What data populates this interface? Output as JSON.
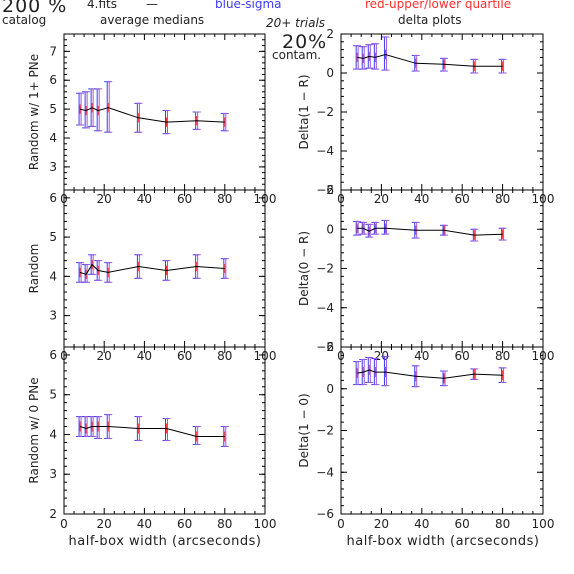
{
  "header": {
    "percent": "200 %",
    "catalog": "catalog",
    "fits": "4.fits",
    "dash": "—",
    "avg": "average medians",
    "blue": "blue-sigma",
    "red": "red-upper/lower quartile",
    "trials": "20+ trials",
    "delta": "delta plots",
    "contam_pct": "20%",
    "contam": "contam."
  },
  "colors": {
    "line": "#000000",
    "blue": "#3b3bff",
    "red": "#ff3030",
    "error": "#9b59d6"
  },
  "xlabel": "half-box width (arcseconds)",
  "chart_data": [
    {
      "type": "line",
      "ylabel": "Random w/ 1+ PNe",
      "xlim": [
        0,
        100
      ],
      "ylim": [
        2.2,
        7.6
      ],
      "xticks": [
        0,
        20,
        40,
        60,
        80,
        100
      ],
      "yticks": [
        3,
        4,
        5,
        6,
        7
      ],
      "x": [
        8,
        11,
        14,
        17,
        22,
        37,
        51,
        66,
        80
      ],
      "values": [
        5.0,
        4.95,
        5.05,
        4.95,
        5.05,
        4.7,
        4.55,
        4.6,
        4.55
      ],
      "err_lo": [
        4.45,
        4.35,
        4.4,
        4.25,
        4.2,
        4.2,
        4.15,
        4.3,
        4.25
      ],
      "err_hi": [
        5.55,
        5.6,
        5.7,
        5.7,
        5.95,
        5.2,
        4.95,
        4.9,
        4.85
      ]
    },
    {
      "type": "line",
      "ylabel": "Delta(1 − R)",
      "xlim": [
        0,
        100
      ],
      "ylim": [
        -6,
        2
      ],
      "xticks": [
        0,
        20,
        40,
        60,
        80,
        100
      ],
      "yticks": [
        -6,
        -4,
        -2,
        0,
        2
      ],
      "x": [
        8,
        11,
        14,
        17,
        22,
        37,
        51,
        66,
        80
      ],
      "values": [
        0.8,
        0.75,
        0.85,
        0.8,
        0.95,
        0.5,
        0.45,
        0.35,
        0.35
      ],
      "err_lo": [
        0.2,
        0.2,
        0.25,
        0.2,
        0.15,
        0.1,
        0.1,
        0.0,
        0.0
      ],
      "err_hi": [
        1.4,
        1.35,
        1.45,
        1.5,
        1.85,
        0.9,
        0.75,
        0.7,
        0.7
      ]
    },
    {
      "type": "line",
      "ylabel": "Random",
      "xlim": [
        0,
        100
      ],
      "ylim": [
        2.2,
        6.2
      ],
      "xticks": [
        0,
        20,
        40,
        60,
        80,
        100
      ],
      "yticks": [
        3,
        4,
        5,
        6
      ],
      "x": [
        8,
        11,
        14,
        17,
        22,
        37,
        51,
        66,
        80
      ],
      "values": [
        4.1,
        4.05,
        4.3,
        4.15,
        4.1,
        4.25,
        4.15,
        4.25,
        4.2
      ],
      "err_lo": [
        3.85,
        3.85,
        4.05,
        3.9,
        3.85,
        3.95,
        3.9,
        3.95,
        3.95
      ],
      "err_hi": [
        4.35,
        4.3,
        4.55,
        4.4,
        4.35,
        4.55,
        4.4,
        4.55,
        4.45
      ]
    },
    {
      "type": "line",
      "ylabel": "Delta(0 − R)",
      "xlim": [
        0,
        100
      ],
      "ylim": [
        -6,
        2
      ],
      "xticks": [
        0,
        20,
        40,
        60,
        80,
        100
      ],
      "yticks": [
        -6,
        -4,
        -2,
        0,
        2
      ],
      "x": [
        8,
        11,
        14,
        17,
        22,
        37,
        51,
        66,
        80
      ],
      "values": [
        0.05,
        0.05,
        -0.1,
        0.05,
        0.05,
        -0.05,
        -0.05,
        -0.3,
        -0.25
      ],
      "err_lo": [
        -0.3,
        -0.25,
        -0.4,
        -0.25,
        -0.25,
        -0.45,
        -0.3,
        -0.6,
        -0.55
      ],
      "err_hi": [
        0.4,
        0.35,
        0.25,
        0.35,
        0.45,
        0.35,
        0.2,
        0.0,
        0.05
      ]
    },
    {
      "type": "line",
      "ylabel": "Random w/ 0 PNe",
      "xlim": [
        0,
        100
      ],
      "ylim": [
        2,
        6.2
      ],
      "xticks": [
        0,
        20,
        40,
        60,
        80,
        100
      ],
      "yticks": [
        2,
        3,
        4,
        5,
        6
      ],
      "x": [
        8,
        11,
        14,
        17,
        22,
        37,
        51,
        66,
        80
      ],
      "values": [
        4.2,
        4.15,
        4.2,
        4.2,
        4.2,
        4.15,
        4.15,
        3.95,
        3.95
      ],
      "err_lo": [
        3.95,
        3.95,
        3.95,
        3.9,
        3.9,
        3.85,
        3.85,
        3.75,
        3.7
      ],
      "err_hi": [
        4.45,
        4.45,
        4.45,
        4.45,
        4.5,
        4.45,
        4.4,
        4.2,
        4.2
      ]
    },
    {
      "type": "line",
      "ylabel": "Delta(1 − 0)",
      "xlim": [
        0,
        100
      ],
      "ylim": [
        -6,
        2
      ],
      "xticks": [
        0,
        20,
        40,
        60,
        80,
        100
      ],
      "yticks": [
        -6,
        -4,
        -2,
        0,
        2
      ],
      "x": [
        8,
        11,
        14,
        17,
        22,
        37,
        51,
        66,
        80
      ],
      "values": [
        0.75,
        0.8,
        0.9,
        0.8,
        0.8,
        0.6,
        0.5,
        0.7,
        0.65
      ],
      "err_lo": [
        0.2,
        0.2,
        0.3,
        0.2,
        0.15,
        0.1,
        0.15,
        0.45,
        0.3
      ],
      "err_hi": [
        1.3,
        1.4,
        1.5,
        1.45,
        1.55,
        1.1,
        0.85,
        0.95,
        1.0
      ]
    }
  ]
}
